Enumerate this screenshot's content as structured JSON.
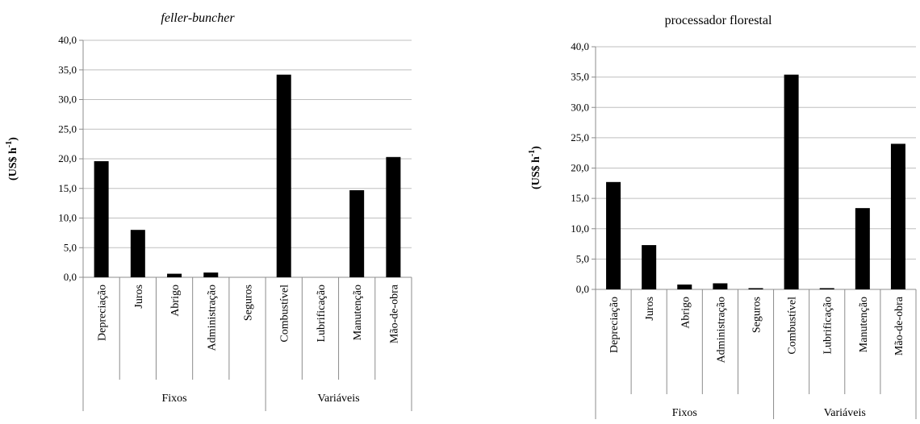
{
  "chart_data": [
    {
      "type": "bar",
      "title": "feller-buncher",
      "title_italic": true,
      "ylabel": "(US$ h-1)",
      "ylabel_main": "(US$ h",
      "ylabel_sup": "-1",
      "ylabel_close": ")",
      "ylim": [
        0,
        40
      ],
      "yticks": [
        "0,0",
        "5,0",
        "10,0",
        "15,0",
        "20,0",
        "25,0",
        "30,0",
        "35,0",
        "40,0"
      ],
      "grid": true,
      "categories": [
        "Depreciação",
        "Juros",
        "Abrigo",
        "Administração",
        "Seguros",
        "Combustível",
        "Lubrificação",
        "Manutenção",
        "Mão-de-obra"
      ],
      "values": [
        19.6,
        8.0,
        0.6,
        0.8,
        0.0,
        34.2,
        0.0,
        14.7,
        20.3
      ],
      "groups": [
        {
          "label": "Fixos",
          "count": 5
        },
        {
          "label": "Variáveis",
          "count": 4
        }
      ],
      "bar_color": "#000000"
    },
    {
      "type": "bar",
      "title": "processador florestal",
      "title_italic": false,
      "ylabel": "(US$ h-1)",
      "ylabel_main": "(US$ h",
      "ylabel_sup": "-1",
      "ylabel_close": ")",
      "ylim": [
        0,
        40
      ],
      "yticks": [
        "0,0",
        "5,0",
        "10,0",
        "15,0",
        "20,0",
        "25,0",
        "30,0",
        "35,0",
        "40,0"
      ],
      "grid": true,
      "categories": [
        "Depreciação",
        "Juros",
        "Abrigo",
        "Administração",
        "Seguros",
        "Combustível",
        "Lubrificação",
        "Manutenção",
        "Mão-de-obra"
      ],
      "values": [
        17.7,
        7.3,
        0.8,
        1.0,
        0.2,
        35.4,
        0.2,
        13.4,
        24.0
      ],
      "groups": [
        {
          "label": "Fixos",
          "count": 5
        },
        {
          "label": "Variáveis",
          "count": 4
        }
      ],
      "bar_color": "#000000"
    }
  ]
}
